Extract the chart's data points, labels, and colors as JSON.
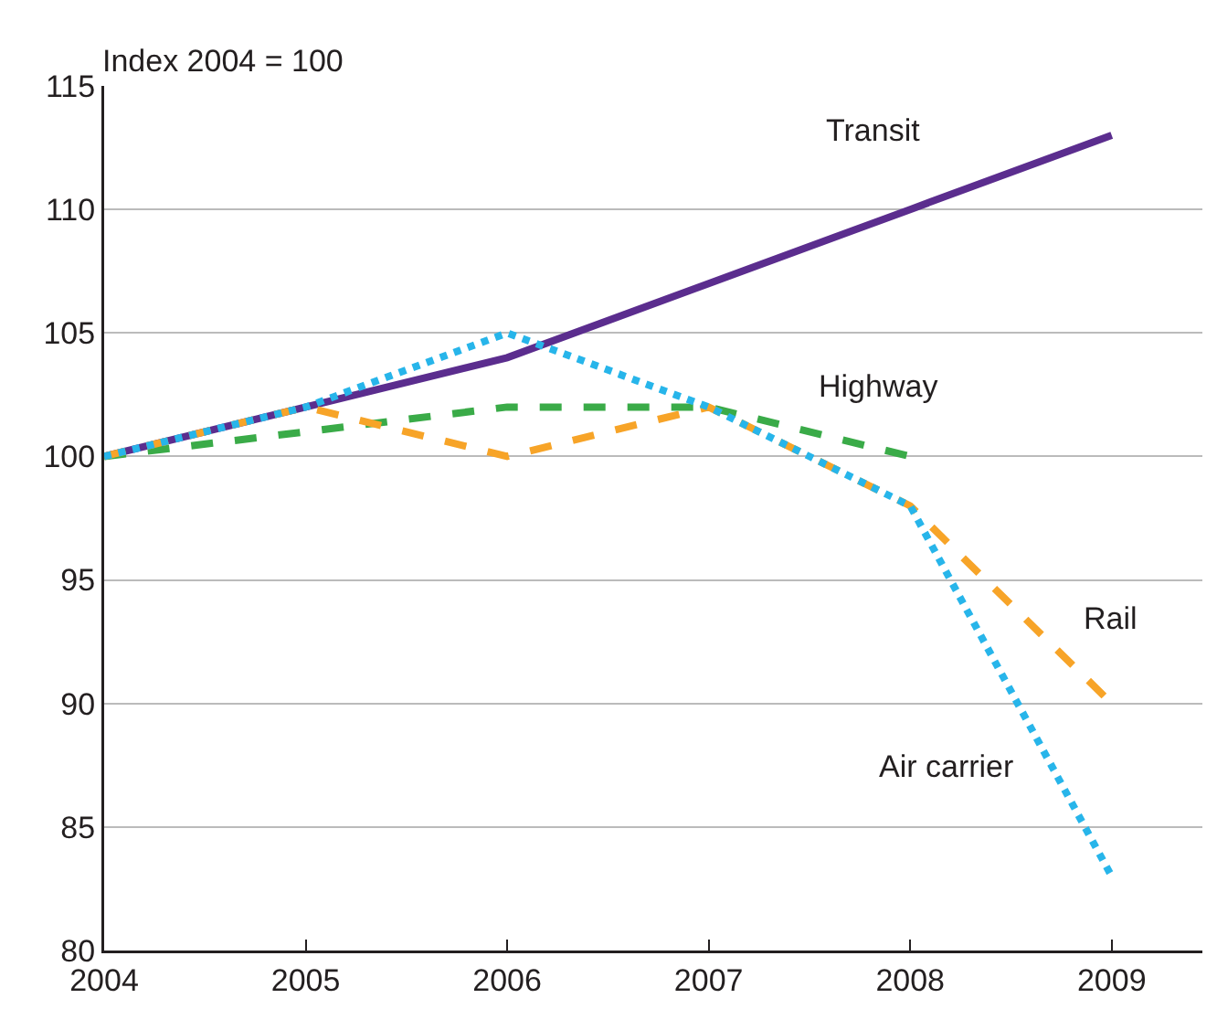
{
  "chart_data": {
    "type": "line",
    "ylabel": "Index 2004 = 100",
    "x": [
      2004,
      2005,
      2006,
      2007,
      2008,
      2009
    ],
    "xlim": [
      2004,
      2009.45
    ],
    "xticks": [
      2004,
      2005,
      2006,
      2007,
      2008,
      2009
    ],
    "ylim": [
      80,
      115
    ],
    "yticks": [
      80,
      85,
      90,
      95,
      100,
      105,
      110,
      115
    ],
    "grid": "y",
    "legend": false,
    "marker": "none",
    "series": [
      {
        "name": "Transit",
        "color": "#5b2d8e",
        "line_style": "solid",
        "values": [
          100,
          102,
          104,
          107,
          110,
          113
        ]
      },
      {
        "name": "Highway",
        "color": "#3aab48",
        "line_style": "dashed",
        "values": [
          100,
          101,
          102,
          102,
          100,
          null
        ]
      },
      {
        "name": "Rail",
        "color": "#f7a428",
        "line_style": "dashed",
        "values": [
          100,
          102,
          100,
          102,
          98,
          90
        ]
      },
      {
        "name": "Air carrier",
        "color": "#27b5ea",
        "line_style": "dotted",
        "values": [
          100,
          102,
          105,
          102,
          98,
          83
        ]
      }
    ]
  }
}
